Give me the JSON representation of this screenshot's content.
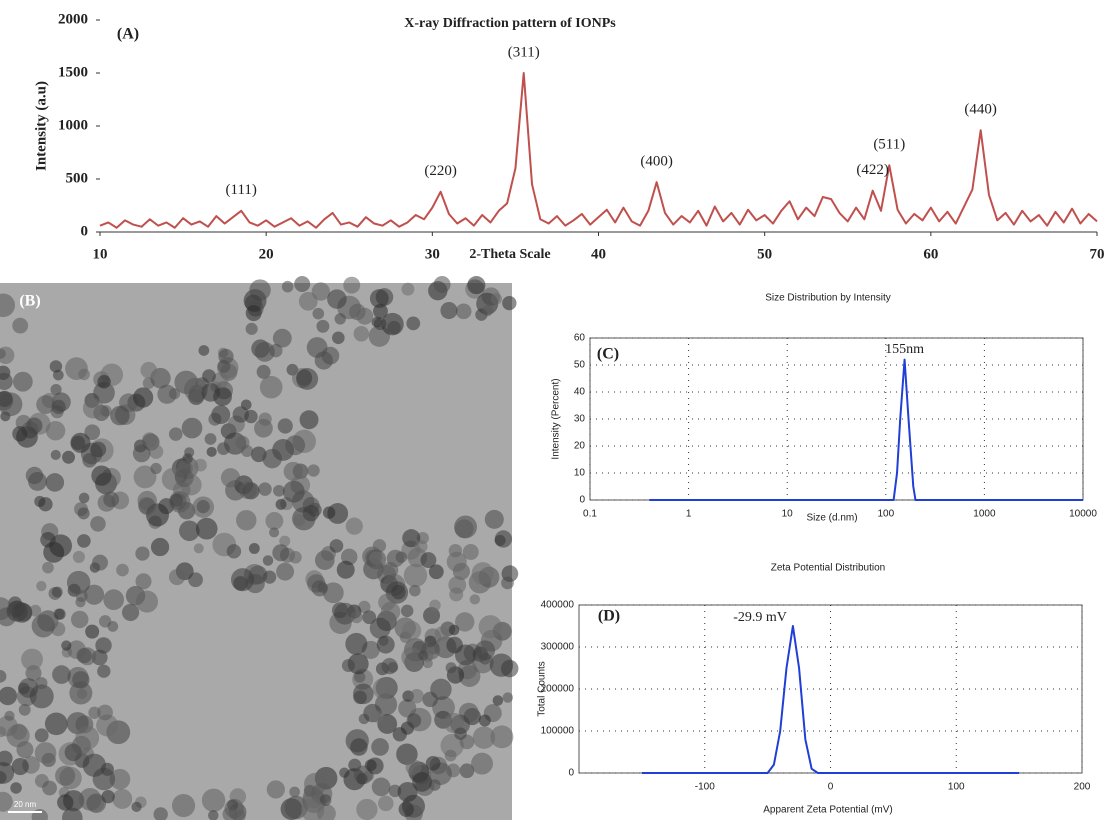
{
  "chart_data": [
    {
      "type": "line",
      "panel_label": "(A)",
      "title": "X-ray Diffraction pattern of IONPs",
      "x_label": "2-Theta Scale",
      "y_label": "Intensity (a.u)",
      "color": "#c0504d",
      "x": [
        10,
        10.5,
        11,
        11.5,
        12,
        12.5,
        13,
        13.5,
        14,
        14.5,
        15,
        15.5,
        16,
        16.5,
        17,
        17.5,
        18,
        18.5,
        19,
        19.5,
        20,
        20.5,
        21,
        21.5,
        22,
        22.5,
        23,
        23.5,
        24,
        24.5,
        25,
        25.5,
        26,
        26.5,
        27,
        27.5,
        28,
        28.5,
        29,
        29.5,
        30,
        30.5,
        31,
        31.5,
        32,
        32.5,
        33,
        33.5,
        34,
        34.5,
        35,
        35.5,
        36,
        36.5,
        37,
        37.5,
        38,
        38.5,
        39,
        39.5,
        40,
        40.5,
        41,
        41.5,
        42,
        42.5,
        43,
        43.5,
        44,
        44.5,
        45,
        45.5,
        46,
        46.5,
        47,
        47.5,
        48,
        48.5,
        49,
        49.5,
        50,
        50.5,
        51,
        51.5,
        52,
        52.5,
        53,
        53.5,
        54,
        54.5,
        55,
        55.5,
        56,
        56.5,
        57,
        57.5,
        58,
        58.5,
        59,
        59.5,
        60,
        60.5,
        61,
        61.5,
        62,
        62.5,
        63,
        63.5,
        64,
        64.5,
        65,
        65.5,
        66,
        66.5,
        67,
        67.5,
        68,
        68.5,
        69,
        69.5,
        70
      ],
      "values": [
        60,
        90,
        40,
        110,
        70,
        50,
        120,
        60,
        90,
        40,
        130,
        70,
        100,
        50,
        150,
        80,
        140,
        200,
        90,
        60,
        110,
        50,
        90,
        130,
        60,
        100,
        40,
        120,
        180,
        70,
        90,
        50,
        140,
        80,
        60,
        110,
        50,
        90,
        160,
        120,
        230,
        380,
        170,
        80,
        130,
        60,
        160,
        90,
        200,
        270,
        600,
        1500,
        450,
        120,
        80,
        150,
        60,
        110,
        170,
        70,
        140,
        210,
        90,
        230,
        100,
        60,
        200,
        470,
        180,
        70,
        150,
        90,
        200,
        60,
        240,
        100,
        180,
        70,
        210,
        110,
        160,
        80,
        200,
        290,
        120,
        230,
        150,
        330,
        310,
        180,
        100,
        230,
        120,
        390,
        200,
        630,
        210,
        80,
        170,
        110,
        230,
        100,
        190,
        80,
        240,
        400,
        960,
        350,
        110,
        180,
        70,
        200,
        100,
        160,
        60,
        190,
        90,
        220,
        80,
        170,
        100
      ],
      "xlim": [
        10,
        70
      ],
      "xticks": [
        10,
        20,
        30,
        40,
        50,
        60,
        70
      ],
      "ylim": [
        0,
        2000
      ],
      "yticks": [
        0,
        500,
        1000,
        1500,
        2000
      ],
      "grid": false,
      "annotations": [
        {
          "text": "(111)",
          "x": 18.5,
          "y": 200
        },
        {
          "text": "(220)",
          "x": 30.5,
          "y": 380
        },
        {
          "text": "(311)",
          "x": 35.5,
          "y": 1500
        },
        {
          "text": "(400)",
          "x": 43.5,
          "y": 470
        },
        {
          "text": "(422)",
          "x": 56.5,
          "y": 390
        },
        {
          "text": "(511)",
          "x": 57.5,
          "y": 630
        },
        {
          "text": "(440)",
          "x": 63,
          "y": 960
        }
      ]
    },
    {
      "type": "image",
      "panel_label": "(B)",
      "scale_bar": "20 nm"
    },
    {
      "type": "line",
      "panel_label": "(C)",
      "title": "Size Distribution by Intensity",
      "x_label": "Size (d.nm)",
      "y_label": "Intensity (Percent)",
      "color": "#1f3fd6",
      "xscale": "log",
      "x": [
        0.4,
        100,
        120,
        130,
        140,
        155,
        170,
        190,
        200,
        10000
      ],
      "values": [
        0,
        0,
        0,
        10,
        30,
        52,
        30,
        5,
        0,
        0
      ],
      "xlim": [
        0.1,
        10000
      ],
      "xticks": [
        0.1,
        1,
        10,
        100,
        1000,
        10000
      ],
      "ylim": [
        0,
        60
      ],
      "yticks": [
        0,
        10,
        20,
        30,
        40,
        50,
        60
      ],
      "grid": true,
      "annotations": [
        {
          "text": "155nm",
          "x": 155,
          "y": 52
        }
      ]
    },
    {
      "type": "line",
      "panel_label": "(D)",
      "title": "Zeta Potential Distribution",
      "x_label": "Apparent Zeta Potential (mV)",
      "y_label": "Total Counts",
      "color": "#1f3fd6",
      "x": [
        -150,
        -50,
        -45,
        -40,
        -35,
        -29.9,
        -25,
        -20,
        -15,
        -10,
        150
      ],
      "values": [
        0,
        0,
        20000,
        100000,
        250000,
        350000,
        250000,
        80000,
        10000,
        0,
        0
      ],
      "xlim": [
        -200,
        200
      ],
      "xticks": [
        -100,
        0,
        100,
        200
      ],
      "ylim": [
        0,
        400000
      ],
      "yticks": [
        0,
        100000,
        200000,
        300000,
        400000
      ],
      "grid": true,
      "annotations": [
        {
          "text": "-29.9 mV",
          "x": -29.9,
          "y": 350000
        }
      ]
    }
  ]
}
